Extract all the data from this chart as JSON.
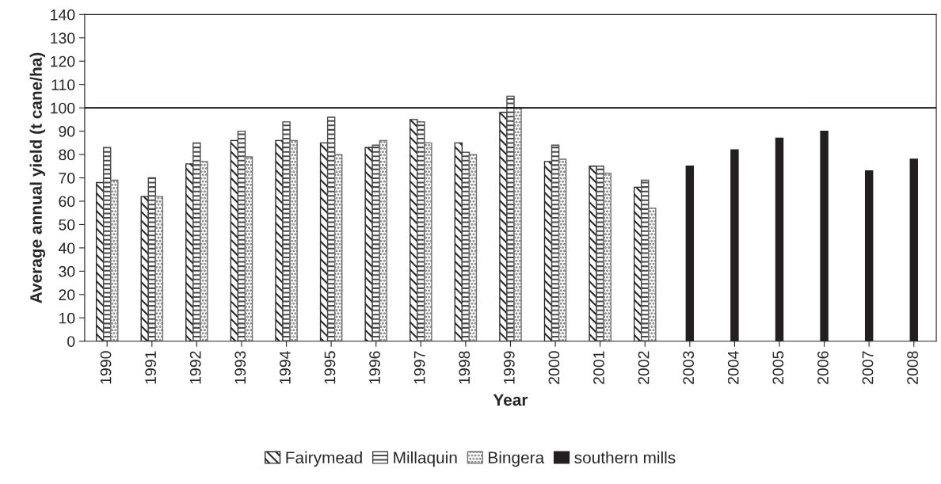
{
  "chart_data": {
    "type": "bar",
    "xlabel": "Year",
    "ylabel": "Average annual yield (t cane/ha)",
    "categories": [
      "1990",
      "1991",
      "1992",
      "1993",
      "1994",
      "1995",
      "1996",
      "1997",
      "1998",
      "1999",
      "2000",
      "2001",
      "2002",
      "2003",
      "2004",
      "2005",
      "2006",
      "2007",
      "2008"
    ],
    "series": [
      {
        "name": "Fairymead",
        "color": "#2a2a2a",
        "values": [
          68,
          62,
          76,
          86,
          86,
          85,
          83,
          95,
          85,
          98,
          77,
          75,
          66,
          null,
          null,
          null,
          null,
          null,
          null
        ]
      },
      {
        "name": "Millaquin",
        "color": "#4a4a4a",
        "values": [
          83,
          70,
          85,
          90,
          94,
          96,
          84,
          94,
          81,
          105,
          84,
          75,
          69,
          null,
          null,
          null,
          null,
          null,
          null
        ]
      },
      {
        "name": "Bingera",
        "color": "#6e6e6e",
        "values": [
          69,
          62,
          77,
          79,
          86,
          80,
          86,
          85,
          80,
          100,
          78,
          72,
          57,
          null,
          null,
          null,
          null,
          null,
          null
        ]
      },
      {
        "name": "southern mills",
        "color": "#231f20",
        "values": [
          null,
          null,
          null,
          null,
          null,
          null,
          null,
          null,
          null,
          null,
          null,
          null,
          null,
          75,
          82,
          87,
          90,
          73,
          78
        ]
      }
    ],
    "ylim": [
      0,
      140
    ],
    "yticks": [
      0,
      10,
      20,
      30,
      40,
      50,
      60,
      70,
      80,
      90,
      100,
      110,
      120,
      130,
      140
    ],
    "ref_lines": [
      {
        "axis": "y",
        "value": 100,
        "color": "#000000"
      }
    ],
    "grid": false,
    "legend": "bottom"
  }
}
